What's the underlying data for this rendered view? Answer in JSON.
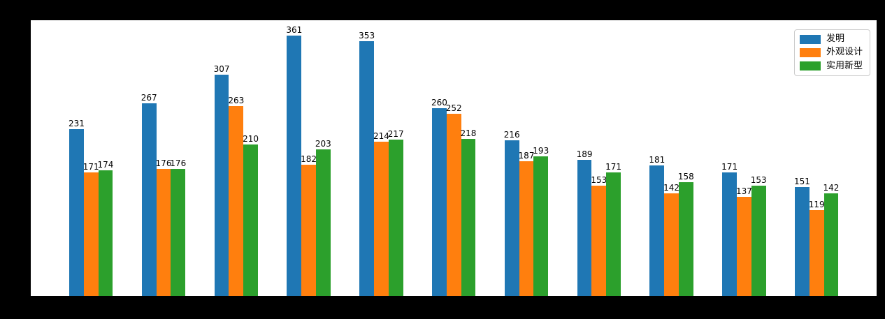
{
  "figure": {
    "background_color": "#000000",
    "axes_background_color": "#ffffff"
  },
  "legend": {
    "position": "upper-right",
    "items": [
      {
        "label": "发明",
        "color": "#1f77b4"
      },
      {
        "label": "外观设计",
        "color": "#ff7f0e"
      },
      {
        "label": "实用新型",
        "color": "#2ca02c"
      }
    ]
  },
  "chart_data": {
    "type": "bar",
    "title": "",
    "xlabel": "",
    "ylabel": "",
    "num_groups": 11,
    "x_tick_labels_visible": false,
    "y_tick_labels_visible": false,
    "bar_value_labels_shown": true,
    "grid": false,
    "legend_position": "upper right",
    "ylim": [
      0,
      382
    ],
    "series": [
      {
        "name": "发明",
        "color": "#1f77b4",
        "values": [
          231,
          267,
          307,
          361,
          353,
          260,
          216,
          189,
          181,
          171,
          151
        ]
      },
      {
        "name": "外观设计",
        "color": "#ff7f0e",
        "values": [
          171,
          176,
          263,
          182,
          214,
          252,
          187,
          153,
          142,
          137,
          119
        ]
      },
      {
        "name": "实用新型",
        "color": "#2ca02c",
        "values": [
          174,
          176,
          210,
          203,
          217,
          218,
          193,
          171,
          158,
          153,
          142
        ]
      }
    ]
  }
}
